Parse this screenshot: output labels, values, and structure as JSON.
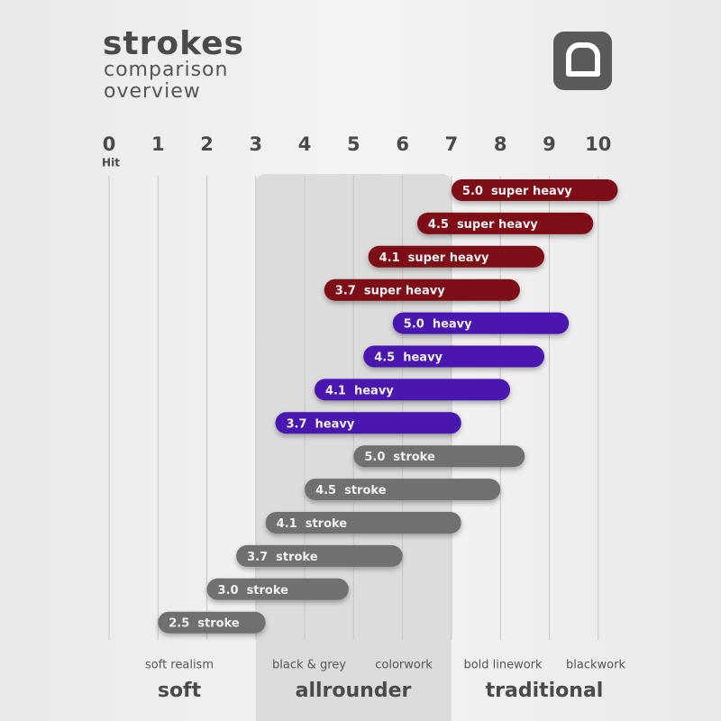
{
  "chart_data": {
    "type": "range",
    "title": "strokes",
    "subtitle": "comparison overview",
    "x_label": "Hit",
    "xlim": [
      0,
      11
    ],
    "xticks": [
      0,
      1,
      2,
      3,
      4,
      5,
      6,
      7,
      8,
      9,
      10
    ],
    "grid": true,
    "highlight": [
      3,
      7
    ],
    "bars": [
      {
        "label": "5.0",
        "name": "super heavy",
        "color": "#7d0f12",
        "start": 7.0,
        "end": 10.4
      },
      {
        "label": "4.5",
        "name": "super heavy",
        "color": "#7d0f12",
        "start": 6.3,
        "end": 9.9
      },
      {
        "label": "4.1",
        "name": "super heavy",
        "color": "#7d0f12",
        "start": 5.3,
        "end": 8.9
      },
      {
        "label": "3.7",
        "name": "super heavy",
        "color": "#7d0f12",
        "start": 4.4,
        "end": 8.4
      },
      {
        "label": "5.0",
        "name": "heavy",
        "color": "#4a14b0",
        "start": 5.8,
        "end": 9.4
      },
      {
        "label": "4.5",
        "name": "heavy",
        "color": "#4a14b0",
        "start": 5.2,
        "end": 8.9
      },
      {
        "label": "4.1",
        "name": "heavy",
        "color": "#4a14b0",
        "start": 4.2,
        "end": 8.2
      },
      {
        "label": "3.7",
        "name": "heavy",
        "color": "#4a14b0",
        "start": 3.4,
        "end": 7.2
      },
      {
        "label": "5.0",
        "name": "stroke",
        "color": "#6f6f6f",
        "start": 5.0,
        "end": 8.5
      },
      {
        "label": "4.5",
        "name": "stroke",
        "color": "#6f6f6f",
        "start": 4.0,
        "end": 8.0
      },
      {
        "label": "4.1",
        "name": "stroke",
        "color": "#6f6f6f",
        "start": 3.2,
        "end": 7.2
      },
      {
        "label": "3.7",
        "name": "stroke",
        "color": "#6f6f6f",
        "start": 2.6,
        "end": 6.0
      },
      {
        "label": "3.0",
        "name": "stroke",
        "color": "#6f6f6f",
        "start": 2.0,
        "end": 4.9
      },
      {
        "label": "2.5",
        "name": "stroke",
        "color": "#6f6f6f",
        "start": 1.0,
        "end": 3.2
      }
    ],
    "styles": [
      "soft realism",
      "black & grey",
      "colorwork",
      "bold linework",
      "blackwork"
    ],
    "groups": [
      "soft",
      "allrounder",
      "traditional"
    ]
  }
}
